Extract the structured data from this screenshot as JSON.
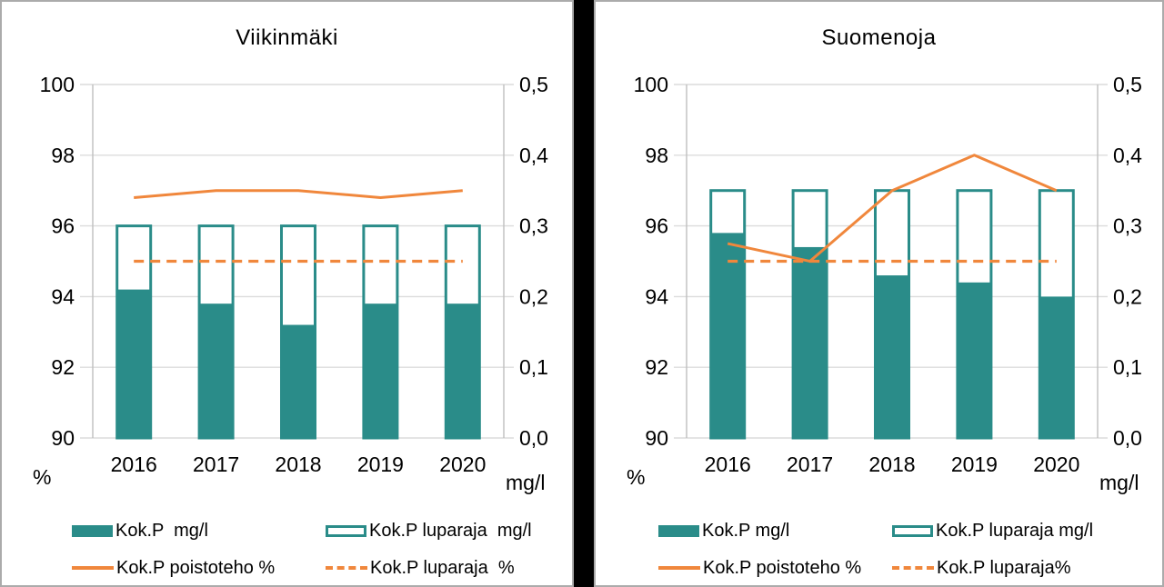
{
  "colors": {
    "teal": "#2A8C89",
    "orange": "#F0873C",
    "grid": "#DCDCDC",
    "axis": "#BFBFBF",
    "panel_border": "#ABABAB",
    "divider": "#000000",
    "text": "#000000"
  },
  "chart_data": [
    {
      "type": "combo-bar-line",
      "title": "Viikinmäki",
      "categories": [
        "2016",
        "2017",
        "2018",
        "2019",
        "2020"
      ],
      "left_axis": {
        "unit": "%",
        "min": 90,
        "max": 100,
        "ticks": [
          100,
          98,
          96,
          94,
          92,
          90
        ]
      },
      "right_axis": {
        "unit": "mg/l",
        "min": 0,
        "max": 0.5,
        "ticks": [
          "0,5",
          "0,4",
          "0,3",
          "0,2",
          "0,1",
          "0,0"
        ]
      },
      "grid": true,
      "legend_position": "bottom",
      "series": [
        {
          "name": "Kok.P  mg/l",
          "kind": "bar-filled",
          "axis": "right",
          "values": [
            0.21,
            0.19,
            0.16,
            0.19,
            0.19
          ]
        },
        {
          "name": "Kok.P luparaja  mg/l",
          "kind": "bar-outline",
          "axis": "right",
          "values": [
            0.3,
            0.3,
            0.3,
            0.3,
            0.3
          ]
        },
        {
          "name": "Kok.P poistoteho %",
          "kind": "line-solid",
          "axis": "left",
          "values": [
            96.8,
            97,
            97,
            96.8,
            97
          ]
        },
        {
          "name": "Kok.P luparaja  %",
          "kind": "line-dashed",
          "axis": "left",
          "values": [
            95,
            95,
            95,
            95,
            95
          ]
        }
      ]
    },
    {
      "type": "combo-bar-line",
      "title": "Suomenoja",
      "categories": [
        "2016",
        "2017",
        "2018",
        "2019",
        "2020"
      ],
      "left_axis": {
        "unit": "%",
        "min": 90,
        "max": 100,
        "ticks": [
          100,
          98,
          96,
          94,
          92,
          90
        ]
      },
      "right_axis": {
        "unit": "mg/l",
        "min": 0,
        "max": 0.5,
        "ticks": [
          "0,5",
          "0,4",
          "0,3",
          "0,2",
          "0,1",
          "0,0"
        ]
      },
      "grid": true,
      "legend_position": "bottom",
      "series": [
        {
          "name": "Kok.P mg/l",
          "kind": "bar-filled",
          "axis": "right",
          "values": [
            0.29,
            0.27,
            0.23,
            0.22,
            0.2
          ]
        },
        {
          "name": "Kok.P luparaja mg/l",
          "kind": "bar-outline",
          "axis": "right",
          "values": [
            0.35,
            0.35,
            0.35,
            0.35,
            0.35
          ]
        },
        {
          "name": "Kok.P poistoteho %",
          "kind": "line-solid",
          "axis": "left",
          "values": [
            95.5,
            95,
            97,
            98,
            97
          ]
        },
        {
          "name": "Kok.P luparaja%",
          "kind": "line-dashed",
          "axis": "left",
          "values": [
            95,
            95,
            95,
            95,
            95
          ]
        }
      ]
    }
  ]
}
